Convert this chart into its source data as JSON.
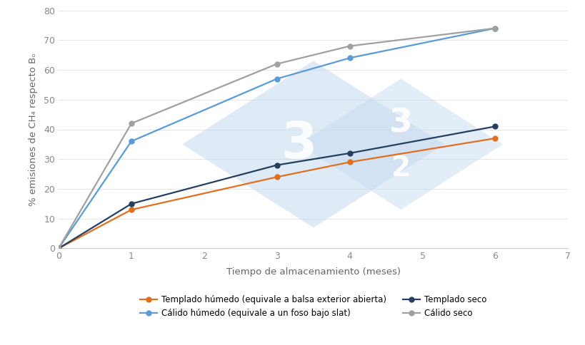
{
  "x": [
    0,
    1,
    3,
    4,
    6
  ],
  "templado_humedo": [
    0,
    13,
    24,
    29,
    37
  ],
  "calido_humedo": [
    0,
    36,
    57,
    64,
    74
  ],
  "templado_seco": [
    0,
    15,
    28,
    32,
    41
  ],
  "calido_seco": [
    0,
    42,
    62,
    68,
    74
  ],
  "colors": {
    "templado_humedo": "#E07020",
    "calido_humedo": "#5B9BD5",
    "templado_seco": "#243F60",
    "calido_seco": "#A0A0A0"
  },
  "labels": {
    "templado_humedo": "Templado húmedo (equivale a balsa exterior abierta)",
    "calido_humedo": "Cálido húmedo (equivale a un foso bajo slat)",
    "templado_seco": "Templado seco",
    "calido_seco": "Cálido seco"
  },
  "xlabel": "Tiempo de almacenamiento (meses)",
  "ylabel": "% emisiones de CH₄ respecto Bₒ",
  "xlim": [
    0,
    7
  ],
  "ylim": [
    0,
    80
  ],
  "xticks": [
    0,
    1,
    2,
    3,
    4,
    5,
    6,
    7
  ],
  "yticks": [
    0,
    10,
    20,
    30,
    40,
    50,
    60,
    70,
    80
  ],
  "background_color": "#FFFFFF",
  "watermark_color": "#C8DCF0",
  "marker": "o",
  "markersize": 5,
  "linewidth": 1.6
}
